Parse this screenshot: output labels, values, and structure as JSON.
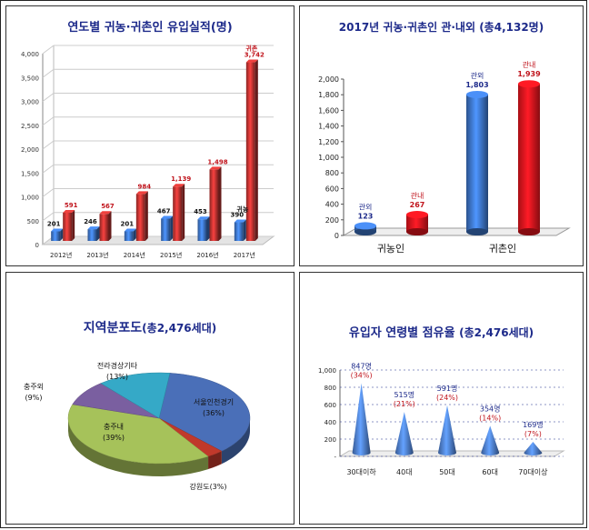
{
  "chart_data": [
    {
      "type": "bar",
      "title": "연도별 귀농·귀촌인 유입실적(명)",
      "categories": [
        "2012년",
        "2013년",
        "2014년",
        "2015년",
        "2016년",
        "2017년"
      ],
      "series": [
        {
          "name": "귀농",
          "values": [
            201,
            246,
            201,
            467,
            453,
            390
          ],
          "labels": [
            "201",
            "246",
            "201",
            "467",
            "453",
            "390"
          ],
          "color": "#3a6fbf"
        },
        {
          "name": "귀촌",
          "values": [
            591,
            567,
            984,
            1139,
            1498,
            3742
          ],
          "labels": [
            "591",
            "567",
            "984",
            "1,139",
            "1,498",
            "3,742"
          ],
          "color": "#b8312f"
        }
      ],
      "ylim": [
        0,
        4000
      ],
      "yticks": [
        "0",
        "500",
        "1,000",
        "1,500",
        "2,000",
        "2,500",
        "3,000",
        "3,500",
        "4,000"
      ],
      "annotations": [
        "귀농",
        "귀촌"
      ]
    },
    {
      "type": "bar",
      "title": "2017년 귀농·귀촌인 관·내외 (총4,132명)",
      "categories": [
        "귀농인",
        "귀촌인"
      ],
      "series": [
        {
          "name": "관외",
          "values": [
            123,
            1803
          ],
          "labels": [
            "123",
            "1,803"
          ],
          "color": "#3a6fbf"
        },
        {
          "name": "관내",
          "values": [
            267,
            1939
          ],
          "labels": [
            "267",
            "1,939"
          ],
          "color": "#e0141c"
        }
      ],
      "ylim": [
        0,
        2000
      ],
      "yticks": [
        "0",
        "200",
        "400",
        "600",
        "800",
        "1,000",
        "1,200",
        "1,400",
        "1,600",
        "1,800",
        "2,000"
      ]
    },
    {
      "type": "pie",
      "title": "지역분포도",
      "title_suffix": "(총2,476세대)",
      "slices": [
        {
          "label": "서울인천경기",
          "pct_label": "(36%)",
          "value": 36,
          "color": "#4a6fb8"
        },
        {
          "label": "강원도(3%)",
          "pct_label": "",
          "value": 3,
          "color": "#c0392b"
        },
        {
          "label": "충주내",
          "pct_label": "(39%)",
          "value": 39,
          "color": "#a6c25a"
        },
        {
          "label": "충주외",
          "pct_label": "(9%)",
          "value": 9,
          "color": "#7a5fa0"
        },
        {
          "label": "전라경상기타",
          "pct_label": "(13%)",
          "value": 13,
          "color": "#35a9c7"
        }
      ]
    },
    {
      "type": "bar",
      "title": "유입자 연령별 점유율",
      "title_suffix": "(총2,476세대)",
      "categories": [
        "30대이하",
        "40대",
        "50대",
        "60대",
        "70대이상"
      ],
      "values": [
        847,
        515,
        591,
        354,
        169
      ],
      "value_labels": [
        "847명",
        "515명",
        "591명",
        "354명",
        "169명"
      ],
      "pct_labels": [
        "(34%)",
        "(21%)",
        "(24%)",
        "(14%)",
        "(7%)"
      ],
      "ylim": [
        0,
        1000
      ],
      "yticks": [
        "-",
        "200",
        "400",
        "600",
        "800",
        "1,000"
      ],
      "color": "#4a78c4"
    }
  ]
}
